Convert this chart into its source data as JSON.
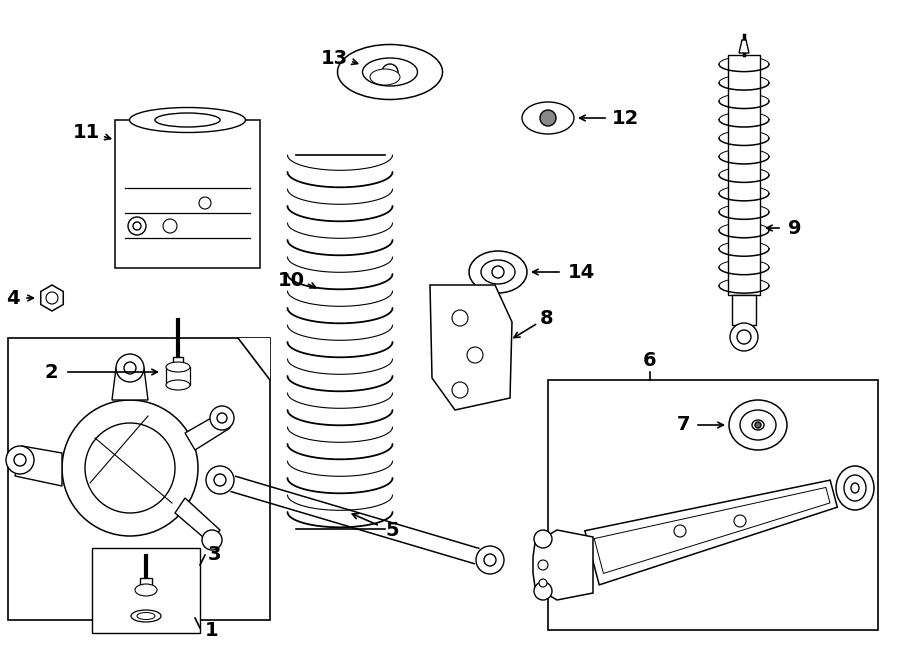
{
  "bg_color": "#ffffff",
  "line_color": "#000000",
  "lw": 1.0,
  "fig_width": 9.0,
  "fig_height": 6.62,
  "dpi": 100
}
